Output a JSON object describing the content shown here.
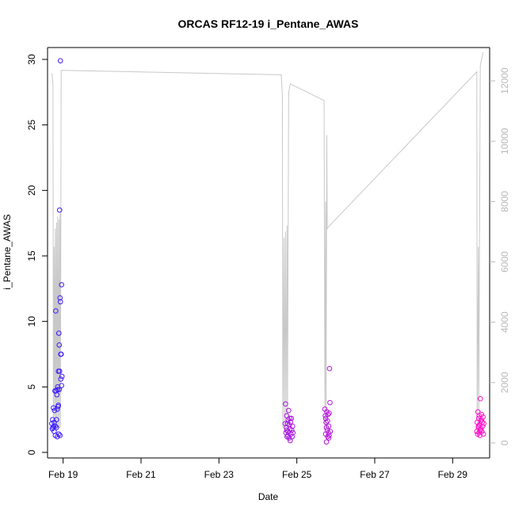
{
  "chart_data": {
    "type": "scatter",
    "title": "ORCAS RF12-19 i_Pentane_AWAS",
    "xlabel": "Date",
    "ylabel": "i_Pentane_AWAS",
    "ylabel_right": "",
    "xlim": [
      18.6,
      29.95
    ],
    "ylim": [
      0,
      30
    ],
    "ylim_right": [
      0,
      12500
    ],
    "x_ticks": [
      {
        "value": 19,
        "label": "Feb 19"
      },
      {
        "value": 21,
        "label": "Feb 21"
      },
      {
        "value": 23,
        "label": "Feb 23"
      },
      {
        "value": 25,
        "label": "Feb 25"
      },
      {
        "value": 27,
        "label": "Feb 27"
      },
      {
        "value": 29,
        "label": "Feb 29"
      }
    ],
    "y_ticks": [
      0,
      5,
      10,
      15,
      20,
      25,
      30
    ],
    "y_ticks_right": [
      0,
      2000,
      4000,
      6000,
      8000,
      10000,
      12000
    ],
    "colors": {
      "start": "#3a1cff",
      "end": "#ff12c8",
      "altitude_line": "#c8c8c8",
      "axis": "#000000",
      "right_axis": "#b8b8b8"
    },
    "series": [
      {
        "values": [
          [
            18.71,
            2.2
          ],
          [
            18.72,
            1.8
          ],
          [
            18.73,
            2.5
          ],
          [
            18.74,
            1.9
          ],
          [
            18.75,
            3.4
          ],
          [
            18.76,
            2.0
          ],
          [
            18.77,
            2.3
          ],
          [
            18.78,
            3.2
          ],
          [
            18.79,
            4.7
          ],
          [
            18.8,
            1.3
          ],
          [
            18.81,
            10.8
          ],
          [
            18.82,
            4.7
          ],
          [
            18.83,
            2.5
          ],
          [
            18.84,
            4.4
          ],
          [
            18.85,
            1.2
          ],
          [
            18.86,
            5.0
          ],
          [
            18.87,
            3.5
          ],
          [
            18.88,
            6.2
          ],
          [
            18.88,
            3.6
          ],
          [
            18.89,
            9.1
          ],
          [
            18.89,
            1.4
          ],
          [
            18.9,
            8.2
          ],
          [
            18.9,
            4.8
          ],
          [
            18.91,
            18.5
          ],
          [
            18.91,
            6.2
          ],
          [
            18.92,
            11.8
          ],
          [
            18.92,
            1.3
          ],
          [
            18.93,
            11.5
          ],
          [
            18.94,
            5.6
          ],
          [
            18.94,
            7.5
          ],
          [
            18.95,
            7.5
          ],
          [
            18.96,
            12.8
          ],
          [
            18.96,
            5.1
          ],
          [
            18.97,
            5.8
          ],
          [
            18.93,
            29.9
          ],
          [
            18.86,
            4.8
          ],
          [
            18.83,
            1.9
          ],
          [
            18.8,
            2.0
          ],
          [
            18.77,
            1.6
          ],
          [
            18.85,
            3.3
          ]
        ]
      },
      {
        "values": [
          [
            24.7,
            2.2
          ],
          [
            24.71,
            3.7
          ],
          [
            24.72,
            1.5
          ],
          [
            24.73,
            1.9
          ],
          [
            24.74,
            2.8
          ],
          [
            24.75,
            1.2
          ],
          [
            24.76,
            2.2
          ],
          [
            24.77,
            1.6
          ],
          [
            24.78,
            2.5
          ],
          [
            24.79,
            3.2
          ],
          [
            24.8,
            1.1
          ],
          [
            24.81,
            2.1
          ],
          [
            24.82,
            1.8
          ],
          [
            24.83,
            0.9
          ],
          [
            24.84,
            2.3
          ],
          [
            24.85,
            1.4
          ],
          [
            24.86,
            2.6
          ],
          [
            24.87,
            1.7
          ],
          [
            24.88,
            1.2
          ],
          [
            24.89,
            2.0
          ],
          [
            24.9,
            1.5
          ],
          [
            24.77,
            1.3
          ],
          [
            24.82,
            2.6
          ],
          [
            24.74,
            1.7
          ],
          [
            25.72,
            3.3
          ],
          [
            25.73,
            2.8
          ],
          [
            25.74,
            1.4
          ],
          [
            25.75,
            2.3
          ],
          [
            25.76,
            0.8
          ],
          [
            25.77,
            3.1
          ],
          [
            25.78,
            1.7
          ],
          [
            25.79,
            1.2
          ],
          [
            25.8,
            2.9
          ],
          [
            25.81,
            1.5
          ],
          [
            25.82,
            2.0
          ],
          [
            25.83,
            3.0
          ],
          [
            25.84,
            6.4
          ],
          [
            25.85,
            3.8
          ],
          [
            25.86,
            1.6
          ],
          [
            25.76,
            1.9
          ],
          [
            25.79,
            2.4
          ],
          [
            25.82,
            1.1
          ],
          [
            25.74,
            2.6
          ],
          [
            25.83,
            1.3
          ],
          [
            29.62,
            1.6
          ],
          [
            29.63,
            2.3
          ],
          [
            29.64,
            1.4
          ],
          [
            29.65,
            3.1
          ],
          [
            29.66,
            1.9
          ],
          [
            29.67,
            2.6
          ],
          [
            29.68,
            1.5
          ],
          [
            29.69,
            2.1
          ],
          [
            29.7,
            1.7
          ],
          [
            29.71,
            4.1
          ],
          [
            29.72,
            2.4
          ],
          [
            29.73,
            1.8
          ],
          [
            29.74,
            2.9
          ],
          [
            29.75,
            1.6
          ],
          [
            29.76,
            2.3
          ],
          [
            29.77,
            2.0
          ],
          [
            29.78,
            2.7
          ],
          [
            29.79,
            1.4
          ],
          [
            29.8,
            2.2
          ],
          [
            29.66,
            2.0
          ],
          [
            29.7,
            1.3
          ],
          [
            29.74,
            2.5
          ],
          [
            29.68,
            2.8
          ]
        ]
      }
    ],
    "altitude_trace": [
      [
        18.71,
        12250
      ],
      [
        18.74,
        11900
      ],
      [
        18.75,
        500
      ],
      [
        18.77,
        6500
      ],
      [
        18.78,
        500
      ],
      [
        18.8,
        7100
      ],
      [
        18.81,
        500
      ],
      [
        18.83,
        7300
      ],
      [
        18.84,
        500
      ],
      [
        18.86,
        7500
      ],
      [
        18.87,
        500
      ],
      [
        18.89,
        7400
      ],
      [
        18.9,
        500
      ],
      [
        18.92,
        7600
      ],
      [
        18.93,
        500
      ],
      [
        18.95,
        12350
      ],
      [
        24.6,
        12200
      ],
      [
        24.63,
        11500
      ],
      [
        24.64,
        500
      ],
      [
        24.67,
        6800
      ],
      [
        24.68,
        500
      ],
      [
        24.71,
        7000
      ],
      [
        24.72,
        500
      ],
      [
        24.75,
        7200
      ],
      [
        24.76,
        500
      ],
      [
        24.79,
        11600
      ],
      [
        24.83,
        11900
      ],
      [
        25.7,
        11350
      ],
      [
        25.71,
        6200
      ],
      [
        25.72,
        500
      ],
      [
        25.74,
        8000
      ],
      [
        25.75,
        500
      ],
      [
        25.77,
        10200
      ],
      [
        25.78,
        7100
      ],
      [
        25.84,
        7200
      ],
      [
        29.62,
        12300
      ],
      [
        29.63,
        500
      ],
      [
        29.66,
        6500
      ],
      [
        29.67,
        500
      ],
      [
        29.69,
        6800
      ],
      [
        29.71,
        12500
      ],
      [
        29.78,
        12950
      ]
    ]
  }
}
